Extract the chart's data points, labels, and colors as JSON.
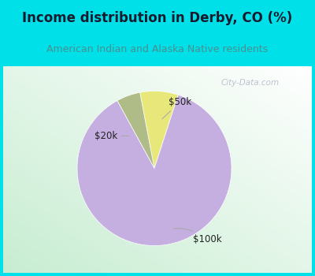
{
  "title": "Income distribution in Derby, CO (%)",
  "subtitle": "American Indian and Alaska Native residents",
  "slices": [
    {
      "label": "$50k",
      "value": 8.0,
      "color": "#e8e87a"
    },
    {
      "label": "$20k",
      "value": 5.0,
      "color": "#b0bc88"
    },
    {
      "label": "$100k",
      "value": 87.0,
      "color": "#c5aee0"
    }
  ],
  "title_color": "#1a1a2e",
  "subtitle_color": "#4a9090",
  "header_bg": "#00e0e8",
  "watermark": "City-Data.com",
  "startangle": 72,
  "label_color": "#222222",
  "label_fontsize": 8.5
}
